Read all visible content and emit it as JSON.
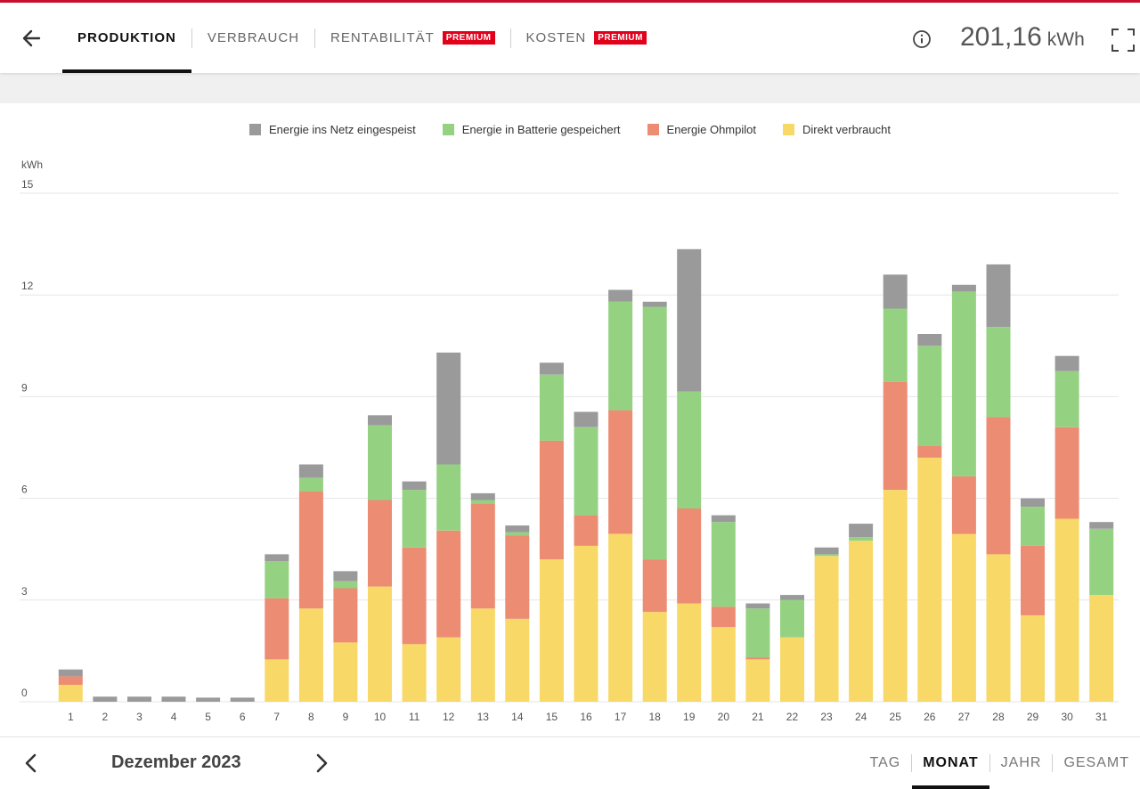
{
  "header": {
    "back_icon": "arrow-left-icon",
    "tabs": [
      {
        "label": "PRODUKTION",
        "active": true,
        "badge": ""
      },
      {
        "label": "VERBRAUCH",
        "active": false,
        "badge": ""
      },
      {
        "label": "RENTABILITÄT",
        "active": false,
        "badge": "PREMIUM"
      },
      {
        "label": "KOSTEN",
        "active": false,
        "badge": "PREMIUM"
      }
    ],
    "info_icon": "info-circle-icon",
    "total_value": "201,16",
    "total_unit": "kWh",
    "fullscreen_icon": "fullscreen-icon"
  },
  "colors": {
    "accent": "#c8102e",
    "badge": "#e2001a",
    "grid_feed": "#9a9a9a",
    "battery": "#94d282",
    "ohmpilot": "#eb8c73",
    "direct": "#f8d866"
  },
  "chart_data": {
    "type": "bar",
    "stacked": true,
    "ylabel": "kWh",
    "ylim": [
      0,
      15
    ],
    "yticks": [
      0,
      3,
      6,
      9,
      12,
      15
    ],
    "grid": true,
    "legend_position": "top",
    "categories": [
      "1",
      "2",
      "3",
      "4",
      "5",
      "6",
      "7",
      "8",
      "9",
      "10",
      "11",
      "12",
      "13",
      "14",
      "15",
      "16",
      "17",
      "18",
      "19",
      "20",
      "21",
      "22",
      "23",
      "24",
      "25",
      "26",
      "27",
      "28",
      "29",
      "30",
      "31"
    ],
    "series": [
      {
        "name": "Direkt verbraucht",
        "color": "#f8d866",
        "values": [
          0.5,
          0,
          0,
          0,
          0,
          0,
          1.25,
          2.75,
          1.75,
          3.4,
          1.7,
          1.9,
          2.75,
          2.45,
          4.2,
          4.6,
          4.95,
          2.65,
          2.9,
          2.2,
          1.25,
          1.9,
          4.3,
          4.75,
          6.25,
          7.2,
          4.95,
          4.35,
          2.55,
          5.4,
          3.15
        ]
      },
      {
        "name": "Energie Ohmpilot",
        "color": "#eb8c73",
        "values": [
          0.25,
          0,
          0,
          0,
          0,
          0,
          1.8,
          3.45,
          1.6,
          2.55,
          2.85,
          3.15,
          3.1,
          2.45,
          3.5,
          0.9,
          3.65,
          1.55,
          2.8,
          0.6,
          0.05,
          0,
          0,
          0,
          3.2,
          0.35,
          1.7,
          4.05,
          2.05,
          2.7,
          0
        ]
      },
      {
        "name": "Energie in Batterie gespeichert",
        "color": "#94d282",
        "values": [
          0,
          0,
          0,
          0,
          0,
          0,
          1.1,
          0.4,
          0.2,
          2.2,
          1.7,
          1.95,
          0.1,
          0.1,
          1.95,
          2.6,
          3.2,
          7.45,
          3.45,
          2.5,
          1.45,
          1.1,
          0.05,
          0.1,
          2.15,
          2.95,
          5.45,
          2.65,
          1.15,
          1.65,
          1.95
        ]
      },
      {
        "name": "Energie ins Netz eingespeist",
        "color": "#9a9a9a",
        "values": [
          0.2,
          0.15,
          0.15,
          0.15,
          0.12,
          0.12,
          0.2,
          0.4,
          0.3,
          0.3,
          0.25,
          3.3,
          0.2,
          0.2,
          0.35,
          0.45,
          0.35,
          0.15,
          4.2,
          0.2,
          0.15,
          0.15,
          0.2,
          0.4,
          1.0,
          0.35,
          0.2,
          1.85,
          0.25,
          0.45,
          0.2
        ]
      }
    ]
  },
  "legend": [
    {
      "label": "Energie ins Netz eingespeist",
      "color": "#9a9a9a"
    },
    {
      "label": "Energie in Batterie gespeichert",
      "color": "#94d282"
    },
    {
      "label": "Energie Ohmpilot",
      "color": "#eb8c73"
    },
    {
      "label": "Direkt verbraucht",
      "color": "#f8d866"
    }
  ],
  "footer": {
    "prev_icon": "chevron-left-icon",
    "next_icon": "chevron-right-icon",
    "period": "Dezember 2023",
    "range_tabs": [
      {
        "label": "TAG",
        "active": false
      },
      {
        "label": "MONAT",
        "active": true
      },
      {
        "label": "JAHR",
        "active": false
      },
      {
        "label": "GESAMT",
        "active": false
      }
    ]
  }
}
